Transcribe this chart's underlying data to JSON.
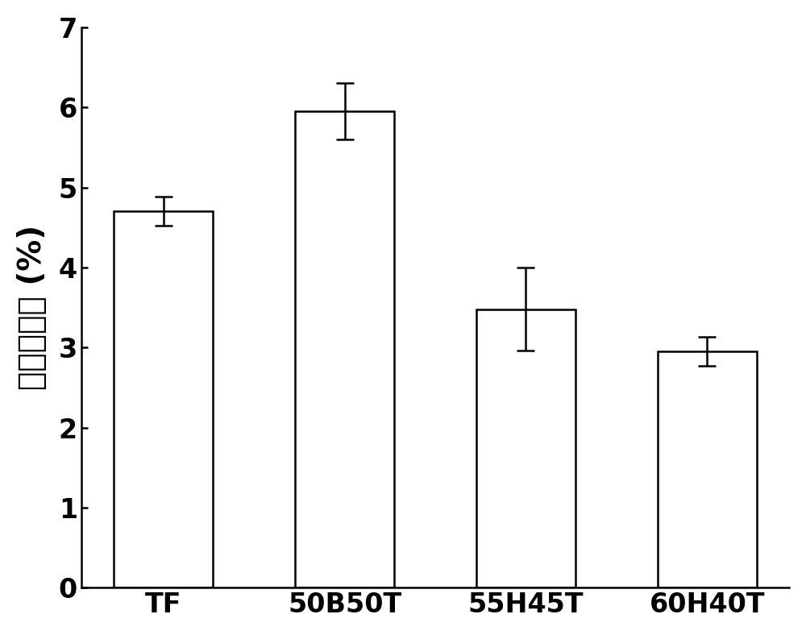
{
  "categories": [
    "TF",
    "50B50T",
    "55H45T",
    "60H40T"
  ],
  "values": [
    4.7,
    5.95,
    3.48,
    2.95
  ],
  "errors": [
    0.18,
    0.35,
    0.52,
    0.18
  ],
  "bar_color": "#ffffff",
  "bar_edgecolor": "#000000",
  "bar_linewidth": 1.8,
  "errorbar_color": "#000000",
  "errorbar_linewidth": 1.8,
  "errorbar_capsize": 8,
  "errorbar_capthick": 1.8,
  "ylabel": "聚合收缩率 (%)",
  "ylim": [
    0,
    7
  ],
  "yticks": [
    0,
    1,
    2,
    3,
    4,
    5,
    6,
    7
  ],
  "ylabel_fontsize": 28,
  "tick_fontsize": 24,
  "xtick_fontsize": 24,
  "background_color": "#ffffff",
  "bar_width": 0.55,
  "spine_linewidth": 1.8,
  "figure_width": 10.0,
  "figure_height": 7.88
}
